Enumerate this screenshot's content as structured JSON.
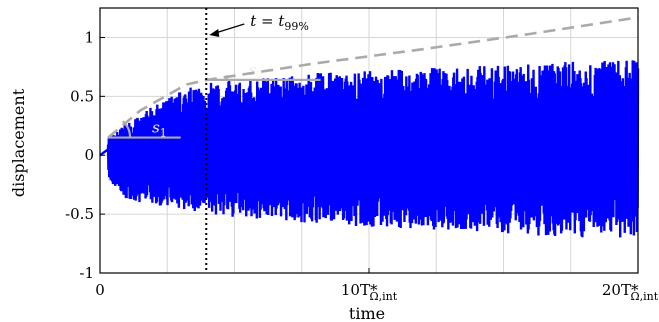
{
  "chart_data": {
    "type": "line",
    "title": "",
    "xlabel": "time",
    "ylabel": "displacement",
    "xlim": [
      0,
      20
    ],
    "ylim": [
      -1,
      1.25
    ],
    "grid": true,
    "x_ticks": [
      {
        "value": 0,
        "label": "0",
        "label_sub": ""
      },
      {
        "value": 10,
        "label": "10T*",
        "label_sub": "Ω,int"
      },
      {
        "value": 20,
        "label": "20T*",
        "label_sub": "Ω,int"
      }
    ],
    "y_ticks": [
      {
        "value": -1,
        "label": "-1"
      },
      {
        "value": -0.5,
        "label": "-0.5"
      },
      {
        "value": 0,
        "label": "0"
      },
      {
        "value": 0.5,
        "label": "0.5"
      },
      {
        "value": 1,
        "label": "1"
      }
    ],
    "series": [
      {
        "name": "",
        "color": "#0000ff",
        "envelope_upper": [
          [
            0,
            0.15
          ],
          [
            0.5,
            0.18
          ],
          [
            1,
            0.28
          ],
          [
            2,
            0.42
          ],
          [
            3,
            0.55
          ],
          [
            4,
            0.62
          ],
          [
            6,
            0.66
          ],
          [
            8,
            0.7
          ],
          [
            10,
            0.72
          ],
          [
            12,
            0.74
          ],
          [
            14,
            0.76
          ],
          [
            16,
            0.78
          ],
          [
            18,
            0.8
          ],
          [
            20,
            0.82
          ]
        ],
        "envelope_lower": [
          [
            0,
            0.0
          ],
          [
            0.5,
            -0.3
          ],
          [
            1,
            -0.38
          ],
          [
            2,
            -0.42
          ],
          [
            3,
            -0.46
          ],
          [
            4,
            -0.5
          ],
          [
            6,
            -0.55
          ],
          [
            8,
            -0.58
          ],
          [
            10,
            -0.61
          ],
          [
            12,
            -0.63
          ],
          [
            14,
            -0.66
          ],
          [
            16,
            -0.68
          ],
          [
            18,
            -0.7
          ],
          [
            20,
            -0.72
          ]
        ]
      }
    ],
    "overlays": {
      "fit_curve": {
        "style": "dashed",
        "color": "#aaaaaa",
        "points": [
          [
            0.3,
            0.15
          ],
          [
            1.5,
            0.38
          ],
          [
            3.2,
            0.6
          ],
          [
            4,
            0.64
          ],
          [
            8,
            0.78
          ],
          [
            12,
            0.9
          ],
          [
            16,
            1.03
          ],
          [
            20,
            1.17
          ]
        ]
      },
      "vertical_marker": {
        "style": "dotted",
        "x": 3.95,
        "label": "t = t99%",
        "label_main": "t = t",
        "label_sub": "99%"
      },
      "slope_lines": [
        {
          "label": "s1",
          "label_main": "s",
          "label_sub": "1",
          "y": 0.15,
          "x_from": 0.3,
          "x_to": 3.0
        },
        {
          "label": "s2",
          "label_main": "s",
          "label_sub": "2",
          "y": 0.64,
          "x_from": 3.9,
          "x_to": 8.2
        }
      ]
    }
  }
}
